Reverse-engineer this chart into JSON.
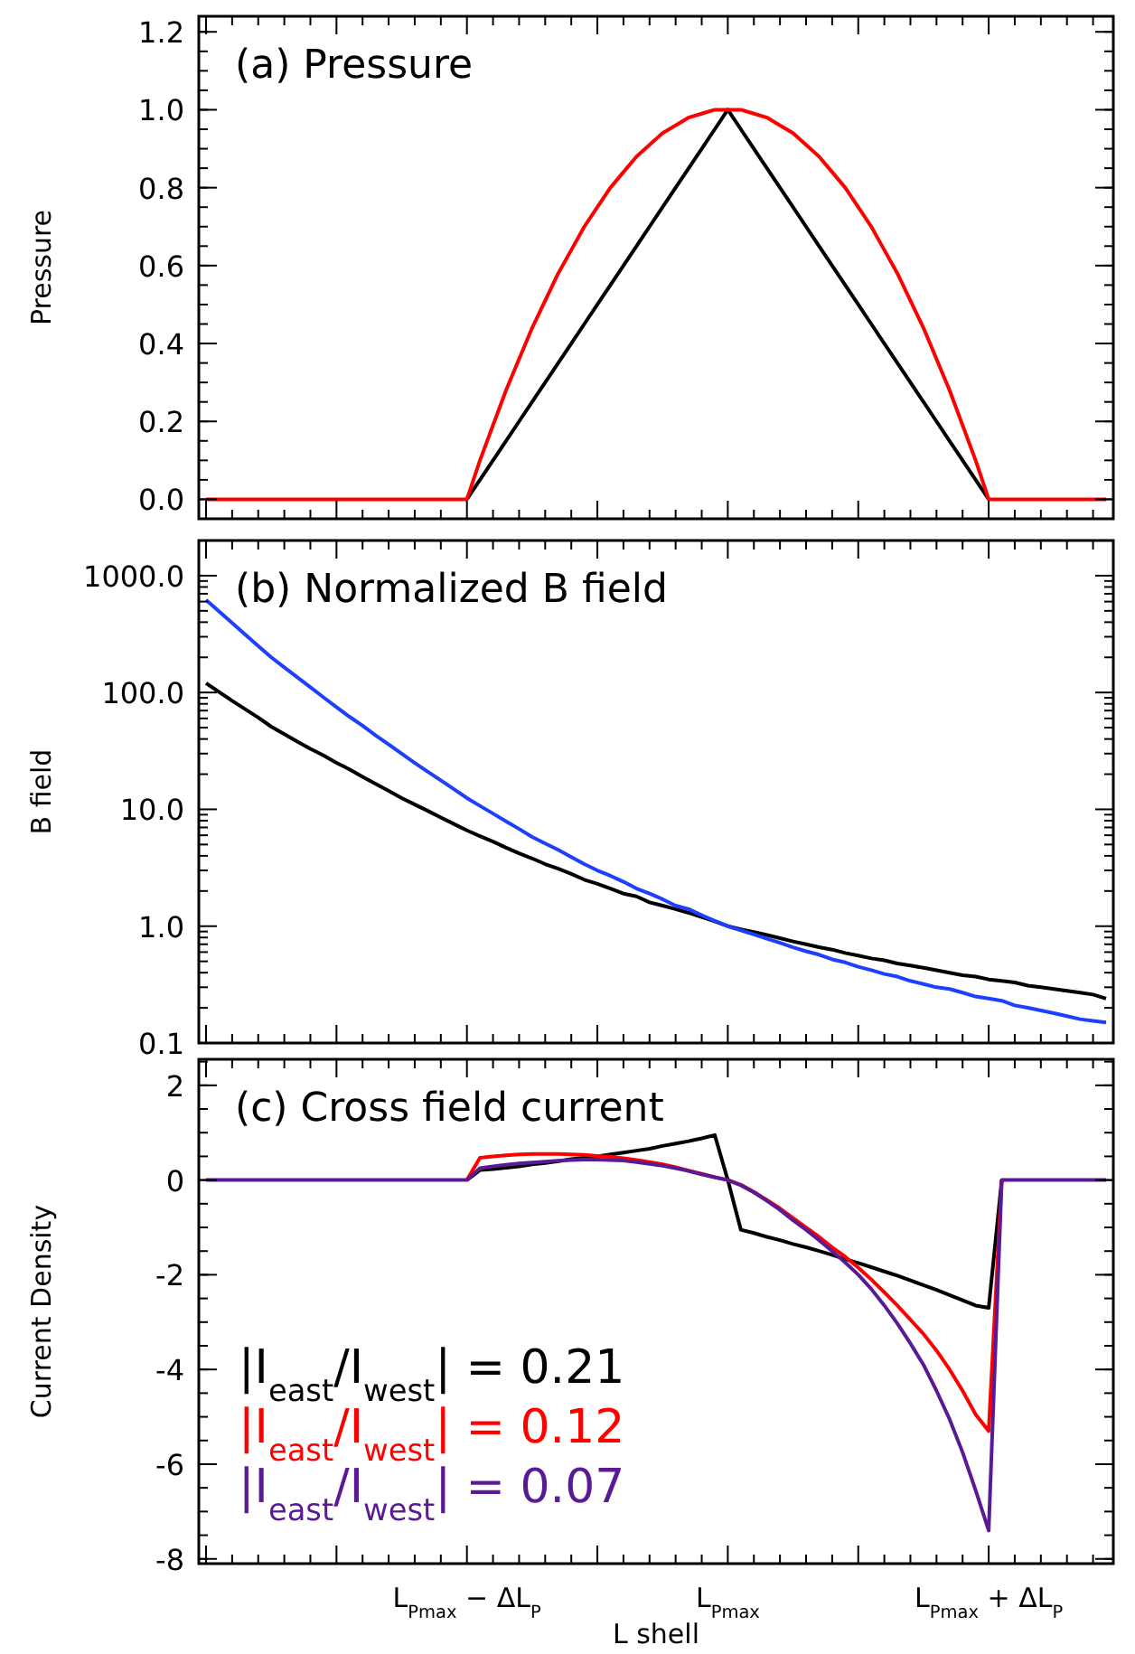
{
  "chart_data": [
    {
      "type": "line",
      "title": "(a) Pressure",
      "ylabel": "Pressure",
      "ylim": [
        -0.05,
        1.24
      ],
      "categories": [
        null,
        null,
        null,
        null,
        null,
        null,
        null,
        null,
        null,
        null,
        null,
        null,
        null,
        null,
        null,
        null,
        null,
        null,
        null,
        null,
        null,
        null,
        null,
        null,
        null,
        null,
        null,
        null,
        null,
        null,
        null,
        null,
        null,
        null,
        null,
        null,
        null,
        null,
        null,
        null,
        null,
        null,
        null,
        null,
        null,
        null,
        null,
        null,
        null,
        null,
        null,
        null,
        null,
        null,
        null,
        null,
        null,
        null,
        null,
        null,
        null,
        null,
        null,
        null,
        null,
        null,
        null,
        null,
        null,
        null
      ],
      "yticks": [
        {
          "value": 0,
          "label": "0.0"
        },
        0.2,
        0.4,
        0.6,
        0.8,
        {
          "value": 1,
          "label": "1.0"
        },
        1.2
      ],
      "grid": false,
      "legend": false,
      "series": [
        {
          "color": "#000000",
          "values": [
            null,
            null,
            null,
            null,
            null,
            null,
            null,
            null,
            null,
            null,
            null,
            null,
            null,
            null,
            null,
            null,
            null,
            null,
            null,
            null,
            0,
            0.05,
            0.1,
            0.15,
            0.2,
            0.25,
            0.3,
            0.35,
            0.4,
            0.45,
            0.5,
            0.55,
            0.6,
            0.65,
            0.7,
            0.75,
            0.8,
            0.85,
            0.9,
            0.95,
            1,
            0.95,
            0.9,
            0.85,
            0.8,
            0.75,
            0.7,
            0.65,
            0.6,
            0.55,
            0.5,
            0.45,
            0.4,
            0.35,
            0.3,
            0.25,
            0.2,
            0.15,
            0.1,
            0.05,
            0,
            null,
            null,
            null,
            null,
            null,
            null,
            null,
            null,
            null
          ]
        },
        {
          "color": "#ff0000",
          "values": [
            0,
            0,
            0,
            0,
            0,
            0,
            0,
            0,
            0,
            0,
            0,
            0,
            0,
            0,
            0,
            0,
            0,
            0,
            0,
            0,
            0,
            0.1,
            0.19,
            0.28,
            0.36,
            0.44,
            0.51,
            0.58,
            0.64,
            0.7,
            0.75,
            0.8,
            0.84,
            0.88,
            0.91,
            0.94,
            0.96,
            0.98,
            0.99,
            1,
            1,
            1,
            0.99,
            0.98,
            0.96,
            0.94,
            0.91,
            0.88,
            0.84,
            0.8,
            0.75,
            0.7,
            0.64,
            0.58,
            0.51,
            0.44,
            0.36,
            0.28,
            0.19,
            0.1,
            0,
            0,
            0,
            0,
            0,
            0,
            0,
            0,
            0,
            0
          ]
        }
      ]
    },
    {
      "type": "line",
      "title": "(b) Normalized B field",
      "ylabel": "B field",
      "log": true,
      "ylim": [
        0.1,
        2000
      ],
      "categories": [
        null,
        null,
        null,
        null,
        null,
        null,
        null,
        null,
        null,
        null,
        null,
        null,
        null,
        null,
        null,
        null,
        null,
        null,
        null,
        null,
        null,
        null,
        null,
        null,
        null,
        null,
        null,
        null,
        null,
        null,
        null,
        null,
        null,
        null,
        null,
        null,
        null,
        null,
        null,
        null,
        null,
        null,
        null,
        null,
        null,
        null,
        null,
        null,
        null,
        null,
        null,
        null,
        null,
        null,
        null,
        null,
        null,
        null,
        null,
        null,
        null,
        null,
        null,
        null,
        null,
        null,
        null,
        null,
        null,
        null
      ],
      "yticks": [
        {
          "value": 0.1,
          "label": "0.1"
        },
        {
          "value": 1,
          "label": "1.0"
        },
        {
          "value": 10,
          "label": "10.0"
        },
        {
          "value": 100,
          "label": "100.0"
        },
        {
          "value": 1000,
          "label": "1000.0"
        }
      ],
      "grid": false,
      "legend": false,
      "series": [
        {
          "color": "#000000",
          "values": [
            120,
            101,
            85,
            72,
            61,
            51,
            44,
            38,
            33,
            29,
            25,
            22,
            19,
            16.5,
            14.4,
            12.5,
            11,
            9.7,
            8.5,
            7.5,
            6.6,
            5.9,
            5.3,
            4.7,
            4.2,
            3.8,
            3.4,
            3.1,
            2.8,
            2.5,
            2.3,
            2.1,
            1.9,
            1.8,
            1.6,
            1.5,
            1.4,
            1.3,
            1.2,
            1.1,
            1,
            0.94,
            0.89,
            0.84,
            0.79,
            0.74,
            0.7,
            0.66,
            0.63,
            0.59,
            0.56,
            0.53,
            0.51,
            0.48,
            0.46,
            0.44,
            0.42,
            0.4,
            0.38,
            0.37,
            0.35,
            0.34,
            0.33,
            0.31,
            0.3,
            0.29,
            0.28,
            0.27,
            0.26,
            0.24
          ]
        },
        {
          "color": "#1f3fff",
          "values": [
            620,
            494,
            394,
            314,
            250,
            200,
            164,
            135,
            111,
            91,
            75,
            62,
            52,
            43,
            36,
            30,
            25,
            21,
            17.7,
            14.9,
            12.5,
            10.7,
            9.2,
            7.9,
            6.8,
            5.8,
            5.1,
            4.5,
            3.9,
            3.4,
            3,
            2.7,
            2.4,
            2.1,
            1.9,
            1.7,
            1.5,
            1.4,
            1.24,
            1.11,
            1,
            0.92,
            0.85,
            0.78,
            0.72,
            0.66,
            0.61,
            0.57,
            0.52,
            0.49,
            0.45,
            0.42,
            0.39,
            0.37,
            0.34,
            0.32,
            0.3,
            0.29,
            0.27,
            0.25,
            0.24,
            0.23,
            0.21,
            0.2,
            0.19,
            0.18,
            0.17,
            0.16,
            0.155,
            0.15
          ]
        }
      ]
    },
    {
      "type": "line",
      "title": "(c) Cross field current",
      "ylabel": "Current Density",
      "xlabel": "L shell",
      "ylim": [
        -8.1,
        2.55
      ],
      "categories": [
        null,
        null,
        null,
        null,
        null,
        null,
        null,
        null,
        null,
        null,
        null,
        null,
        null,
        null,
        null,
        null,
        null,
        null,
        null,
        null,
        "L$_{Pmax}$ − ΔL$_{P}$",
        null,
        null,
        null,
        null,
        null,
        null,
        null,
        null,
        null,
        null,
        null,
        null,
        null,
        null,
        null,
        null,
        null,
        null,
        null,
        "L$_{Pmax}$",
        null,
        null,
        null,
        null,
        null,
        null,
        null,
        null,
        null,
        null,
        null,
        null,
        null,
        null,
        null,
        null,
        null,
        null,
        null,
        "L$_{Pmax}$ + ΔL$_{P}$",
        null,
        null,
        null,
        null,
        null,
        null,
        null,
        null,
        null
      ],
      "yticks": [
        -8,
        -6,
        -4,
        -2,
        0,
        2
      ],
      "grid": false,
      "legend": "bottom left",
      "series": [
        {
          "name": "|I$_{east}$/I$_{west}$| = 0.21",
          "color": "#000000",
          "values": [
            null,
            null,
            null,
            null,
            null,
            null,
            null,
            null,
            null,
            null,
            null,
            null,
            null,
            null,
            null,
            null,
            null,
            null,
            null,
            null,
            0,
            0.21,
            0.23,
            0.26,
            0.29,
            0.33,
            0.36,
            0.4,
            0.44,
            0.47,
            0.5,
            0.54,
            0.58,
            0.62,
            0.66,
            0.72,
            0.77,
            0.82,
            0.88,
            0.95,
            0,
            -1.05,
            -1.12,
            -1.2,
            -1.27,
            -1.35,
            -1.42,
            -1.5,
            -1.58,
            -1.67,
            -1.75,
            -1.84,
            -1.93,
            -2.02,
            -2.12,
            -2.22,
            -2.32,
            -2.43,
            -2.54,
            -2.65,
            -2.7,
            0,
            null,
            null,
            null,
            null,
            null,
            null,
            null,
            null
          ]
        },
        {
          "name": "|I$_{east}$/I$_{west}$| = 0.12",
          "color": "#ff0000",
          "values": [
            null,
            null,
            null,
            null,
            null,
            null,
            null,
            null,
            null,
            null,
            null,
            null,
            null,
            null,
            null,
            null,
            null,
            null,
            null,
            null,
            0,
            0.47,
            0.5,
            0.52,
            0.54,
            0.55,
            0.55,
            0.55,
            0.54,
            0.53,
            0.51,
            0.49,
            0.46,
            0.42,
            0.38,
            0.33,
            0.27,
            0.2,
            0.13,
            0.06,
            0,
            -0.1,
            -0.25,
            -0.42,
            -0.6,
            -0.8,
            -1,
            -1.2,
            -1.42,
            -1.62,
            -1.85,
            -2.1,
            -2.37,
            -2.65,
            -2.95,
            -3.25,
            -3.6,
            -4,
            -4.45,
            -4.95,
            -5.3,
            0,
            null,
            null,
            null,
            null,
            null,
            null,
            null,
            null
          ]
        },
        {
          "name": "|I$_{east}$/I$_{west}$| = 0.07",
          "color": "#5a1a96",
          "values": [
            0,
            0,
            0,
            0,
            0,
            0,
            0,
            0,
            0,
            0,
            0,
            0,
            0,
            0,
            0,
            0,
            0,
            0,
            0,
            0,
            0,
            0.25,
            0.29,
            0.32,
            0.35,
            0.37,
            0.39,
            0.41,
            0.42,
            0.43,
            0.43,
            0.42,
            0.41,
            0.38,
            0.34,
            0.3,
            0.25,
            0.19,
            0.12,
            0.06,
            0,
            -0.11,
            -0.26,
            -0.44,
            -0.63,
            -0.85,
            -1.05,
            -1.27,
            -1.5,
            -1.74,
            -2,
            -2.3,
            -2.65,
            -3.03,
            -3.45,
            -3.9,
            -4.45,
            -5.05,
            -5.75,
            -6.55,
            -7.4,
            0,
            0,
            0,
            0,
            0,
            0,
            0,
            0,
            0
          ]
        }
      ]
    }
  ]
}
